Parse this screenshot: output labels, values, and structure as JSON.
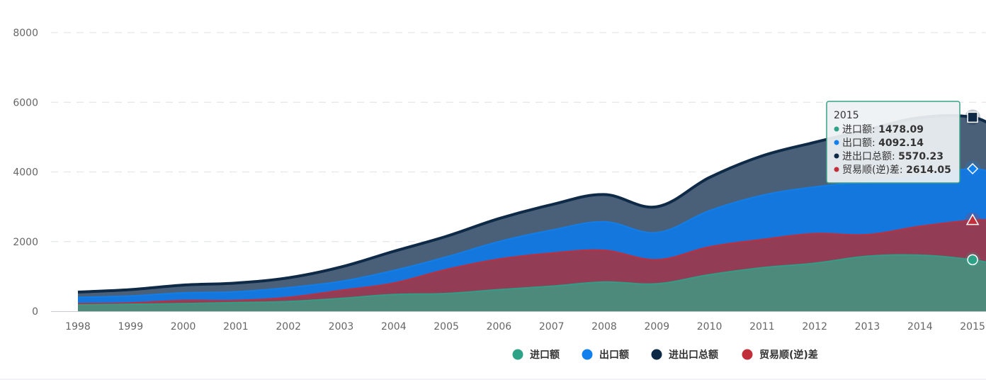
{
  "chart_data": {
    "type": "area",
    "x": [
      "1998",
      "1999",
      "2000",
      "2001",
      "2002",
      "2003",
      "2004",
      "2005",
      "2006",
      "2007",
      "2008",
      "2009",
      "2010",
      "2011",
      "2012",
      "2013",
      "2014",
      "2015"
    ],
    "ylim": [
      0,
      8000
    ],
    "yticks": [
      "0",
      "2000",
      "4000",
      "6000",
      "8000"
    ],
    "grid": true,
    "legend_position": "bottom",
    "series": [
      {
        "name": "进口额",
        "color": "#2ea287",
        "fill": "#4d8a7c",
        "marker": "circle",
        "values": [
          180,
          200,
          220,
          250,
          280,
          370,
          480,
          510,
          620,
          720,
          840,
          790,
          1050,
          1250,
          1380,
          1580,
          1610,
          1478.09
        ]
      },
      {
        "name": "出口额",
        "color": "#1180ec",
        "fill": "#1477de",
        "marker": "diamond",
        "values": [
          400,
          440,
          530,
          560,
          680,
          860,
          1170,
          1560,
          2000,
          2330,
          2570,
          2260,
          2890,
          3330,
          3570,
          3720,
          3870,
          4092.14
        ]
      },
      {
        "name": "进出口总额",
        "color": "#0f2a47",
        "fill": "#4a6079",
        "marker": "square",
        "values": [
          550,
          620,
          750,
          810,
          960,
          1270,
          1720,
          2150,
          2660,
          3060,
          3350,
          3000,
          3840,
          4460,
          4850,
          5210,
          5560,
          5570.23
        ]
      },
      {
        "name": "贸易顺(逆)差",
        "color": "#c02f3a",
        "fill": "#923c56",
        "marker": "triangle",
        "values": [
          220,
          240,
          310,
          310,
          400,
          600,
          810,
          1200,
          1500,
          1670,
          1750,
          1480,
          1850,
          2060,
          2230,
          2200,
          2440,
          2614.05
        ]
      }
    ],
    "tooltip": {
      "x": "2015",
      "entries": [
        {
          "label": "进口额",
          "value": "1478.09",
          "color": "#2ea287"
        },
        {
          "label": "出口额",
          "value": "4092.14",
          "color": "#1180ec"
        },
        {
          "label": "进出口总额",
          "value": "5570.23",
          "color": "#0f2a47"
        },
        {
          "label": "贸易顺(逆)差",
          "value": "2614.05",
          "color": "#c02f3a"
        }
      ]
    }
  }
}
